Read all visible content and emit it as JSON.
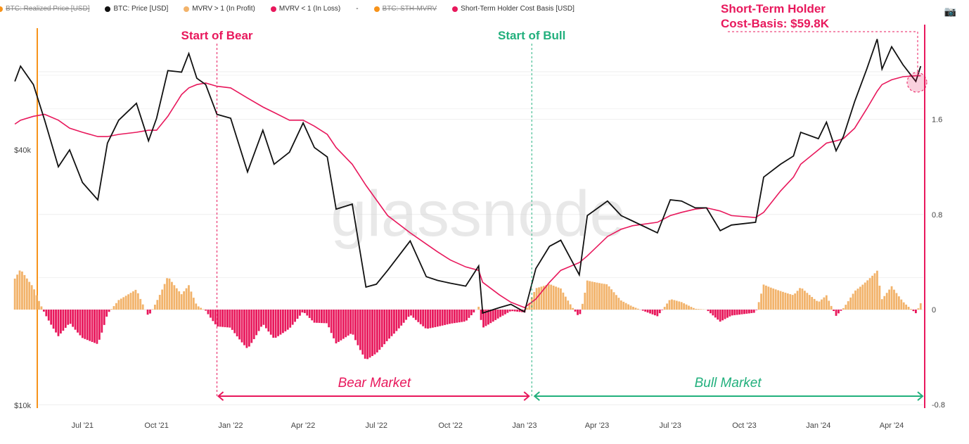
{
  "legend": [
    {
      "label": "BTC: Realized Price [USD]",
      "color": "#f7931a",
      "hidden": true
    },
    {
      "label": "BTC: Price [USD]",
      "color": "#111111",
      "hidden": false
    },
    {
      "label": "MVRV > 1 (In Profit)",
      "color": "#f2b36b",
      "hidden": false
    },
    {
      "label": "MVRV < 1 (In Loss)",
      "color": "#e8185c",
      "hidden": false
    },
    {
      "label": "-",
      "color": "#bbbbbb",
      "hidden": false
    },
    {
      "label": "BTC: STH-MVRV",
      "color": "#f7931a",
      "hidden": true
    },
    {
      "label": "Short-Term Holder Cost Basis [USD]",
      "color": "#e8185c",
      "hidden": false
    }
  ],
  "camera_icon": "camera-icon",
  "watermark": "glassnode",
  "annotations": {
    "sth_title_line1": "Short-Term Holder",
    "sth_title_line2": "Cost-Basis: $59.8K",
    "start_bear": "Start of Bear",
    "start_bull": "Start of Bull",
    "bear_market": "Bear Market",
    "bull_market": "Bull Market",
    "start_bear_date": "2021-12-15",
    "start_bull_date": "2023-01-10",
    "pink": "#e8185c",
    "green": "#22b07d"
  },
  "chart_data": {
    "type": "line",
    "y_left": {
      "scale": "log",
      "ticks": [
        {
          "value": 40000,
          "label": "$40k"
        },
        {
          "value": 10000,
          "label": "$10k"
        }
      ]
    },
    "y_right": {
      "scale": "linear",
      "ylim": [
        -0.8,
        2.1
      ],
      "ticks": [
        {
          "value": 1.6,
          "label": "1.6"
        },
        {
          "value": 0.8,
          "label": "0.8"
        },
        {
          "value": 0,
          "label": "0"
        },
        {
          "value": -0.8,
          "label": "-0.8"
        }
      ]
    },
    "x_ticks": [
      {
        "date": "2021-07-01",
        "label": "Jul '21"
      },
      {
        "date": "2021-10-01",
        "label": "Oct '21"
      },
      {
        "date": "2022-01-01",
        "label": "Jan '22"
      },
      {
        "date": "2022-04-01",
        "label": "Apr '22"
      },
      {
        "date": "2022-07-01",
        "label": "Jul '22"
      },
      {
        "date": "2022-10-01",
        "label": "Oct '22"
      },
      {
        "date": "2023-01-01",
        "label": "Jan '23"
      },
      {
        "date": "2023-04-01",
        "label": "Apr '23"
      },
      {
        "date": "2023-07-01",
        "label": "Jul '23"
      },
      {
        "date": "2023-10-01",
        "label": "Oct '23"
      },
      {
        "date": "2024-01-01",
        "label": "Jan '24"
      },
      {
        "date": "2024-04-01",
        "label": "Apr '24"
      }
    ],
    "series_fields": [
      "date",
      "btc_price_usd",
      "sth_cost_basis_usd"
    ],
    "series": [
      [
        "2021-04-08",
        58000,
        46000
      ],
      [
        "2021-04-15",
        63000,
        47000
      ],
      [
        "2021-05-01",
        57000,
        48000
      ],
      [
        "2021-05-15",
        47000,
        48500
      ],
      [
        "2021-06-01",
        36500,
        47000
      ],
      [
        "2021-06-15",
        40000,
        45000
      ],
      [
        "2021-07-01",
        33500,
        44000
      ],
      [
        "2021-07-20",
        30500,
        43000
      ],
      [
        "2021-08-01",
        41500,
        43000
      ],
      [
        "2021-08-15",
        47000,
        43500
      ],
      [
        "2021-09-06",
        51500,
        44000
      ],
      [
        "2021-09-21",
        42000,
        44500
      ],
      [
        "2021-10-01",
        47500,
        44500
      ],
      [
        "2021-10-15",
        61500,
        48000
      ],
      [
        "2021-11-01",
        61000,
        54000
      ],
      [
        "2021-11-10",
        67500,
        56000
      ],
      [
        "2021-11-20",
        59000,
        57000
      ],
      [
        "2021-12-01",
        57000,
        57500
      ],
      [
        "2021-12-15",
        48500,
        56500
      ],
      [
        "2022-01-01",
        47500,
        56000
      ],
      [
        "2022-01-22",
        35500,
        53000
      ],
      [
        "2022-02-10",
        44500,
        50500
      ],
      [
        "2022-02-24",
        37000,
        49000
      ],
      [
        "2022-03-15",
        39500,
        47000
      ],
      [
        "2022-04-01",
        46300,
        47000
      ],
      [
        "2022-04-15",
        40500,
        45500
      ],
      [
        "2022-05-01",
        38500,
        43500
      ],
      [
        "2022-05-12",
        29000,
        40500
      ],
      [
        "2022-06-01",
        29800,
        37000
      ],
      [
        "2022-06-18",
        19000,
        33000
      ],
      [
        "2022-07-01",
        19300,
        30500
      ],
      [
        "2022-07-15",
        20800,
        28000
      ],
      [
        "2022-08-12",
        24400,
        25500
      ],
      [
        "2022-09-01",
        20100,
        24000
      ],
      [
        "2022-09-15",
        19700,
        23000
      ],
      [
        "2022-10-01",
        19400,
        22000
      ],
      [
        "2022-10-20",
        19100,
        21200
      ],
      [
        "2022-11-05",
        21300,
        20800
      ],
      [
        "2022-11-10",
        16500,
        19500
      ],
      [
        "2022-12-01",
        17000,
        18200
      ],
      [
        "2022-12-15",
        17300,
        17500
      ],
      [
        "2023-01-01",
        16600,
        17000
      ],
      [
        "2023-01-15",
        21000,
        17800
      ],
      [
        "2023-02-01",
        23700,
        19500
      ],
      [
        "2023-02-15",
        24500,
        20800
      ],
      [
        "2023-03-10",
        20300,
        21700
      ],
      [
        "2023-03-20",
        28000,
        22500
      ],
      [
        "2023-04-14",
        30300,
        25000
      ],
      [
        "2023-05-01",
        28000,
        26000
      ],
      [
        "2023-05-15",
        27200,
        26500
      ],
      [
        "2023-06-15",
        25500,
        27000
      ],
      [
        "2023-07-01",
        30500,
        28000
      ],
      [
        "2023-07-15",
        30300,
        28500
      ],
      [
        "2023-08-01",
        29200,
        29000
      ],
      [
        "2023-08-15",
        29200,
        29200
      ],
      [
        "2023-09-01",
        25800,
        28700
      ],
      [
        "2023-09-15",
        26600,
        28000
      ],
      [
        "2023-10-15",
        27000,
        27700
      ],
      [
        "2023-10-25",
        34500,
        28500
      ],
      [
        "2023-11-15",
        37000,
        32000
      ],
      [
        "2023-12-01",
        38700,
        34500
      ],
      [
        "2023-12-10",
        44000,
        37000
      ],
      [
        "2024-01-01",
        42500,
        40000
      ],
      [
        "2024-01-11",
        46500,
        41500
      ],
      [
        "2024-01-23",
        39800,
        42000
      ],
      [
        "2024-02-01",
        43000,
        42500
      ],
      [
        "2024-02-15",
        52000,
        45000
      ],
      [
        "2024-03-01",
        62000,
        50000
      ],
      [
        "2024-03-14",
        73000,
        55000
      ],
      [
        "2024-03-20",
        62000,
        57000
      ],
      [
        "2024-04-01",
        70000,
        58500
      ],
      [
        "2024-04-15",
        63500,
        59500
      ],
      [
        "2024-05-01",
        58000,
        59800
      ],
      [
        "2024-05-07",
        63000,
        59800
      ]
    ],
    "bars": {
      "label": "STH-MVRV - 1",
      "positive_color": "#f2b36b",
      "negative_color": "#e8185c"
    }
  }
}
